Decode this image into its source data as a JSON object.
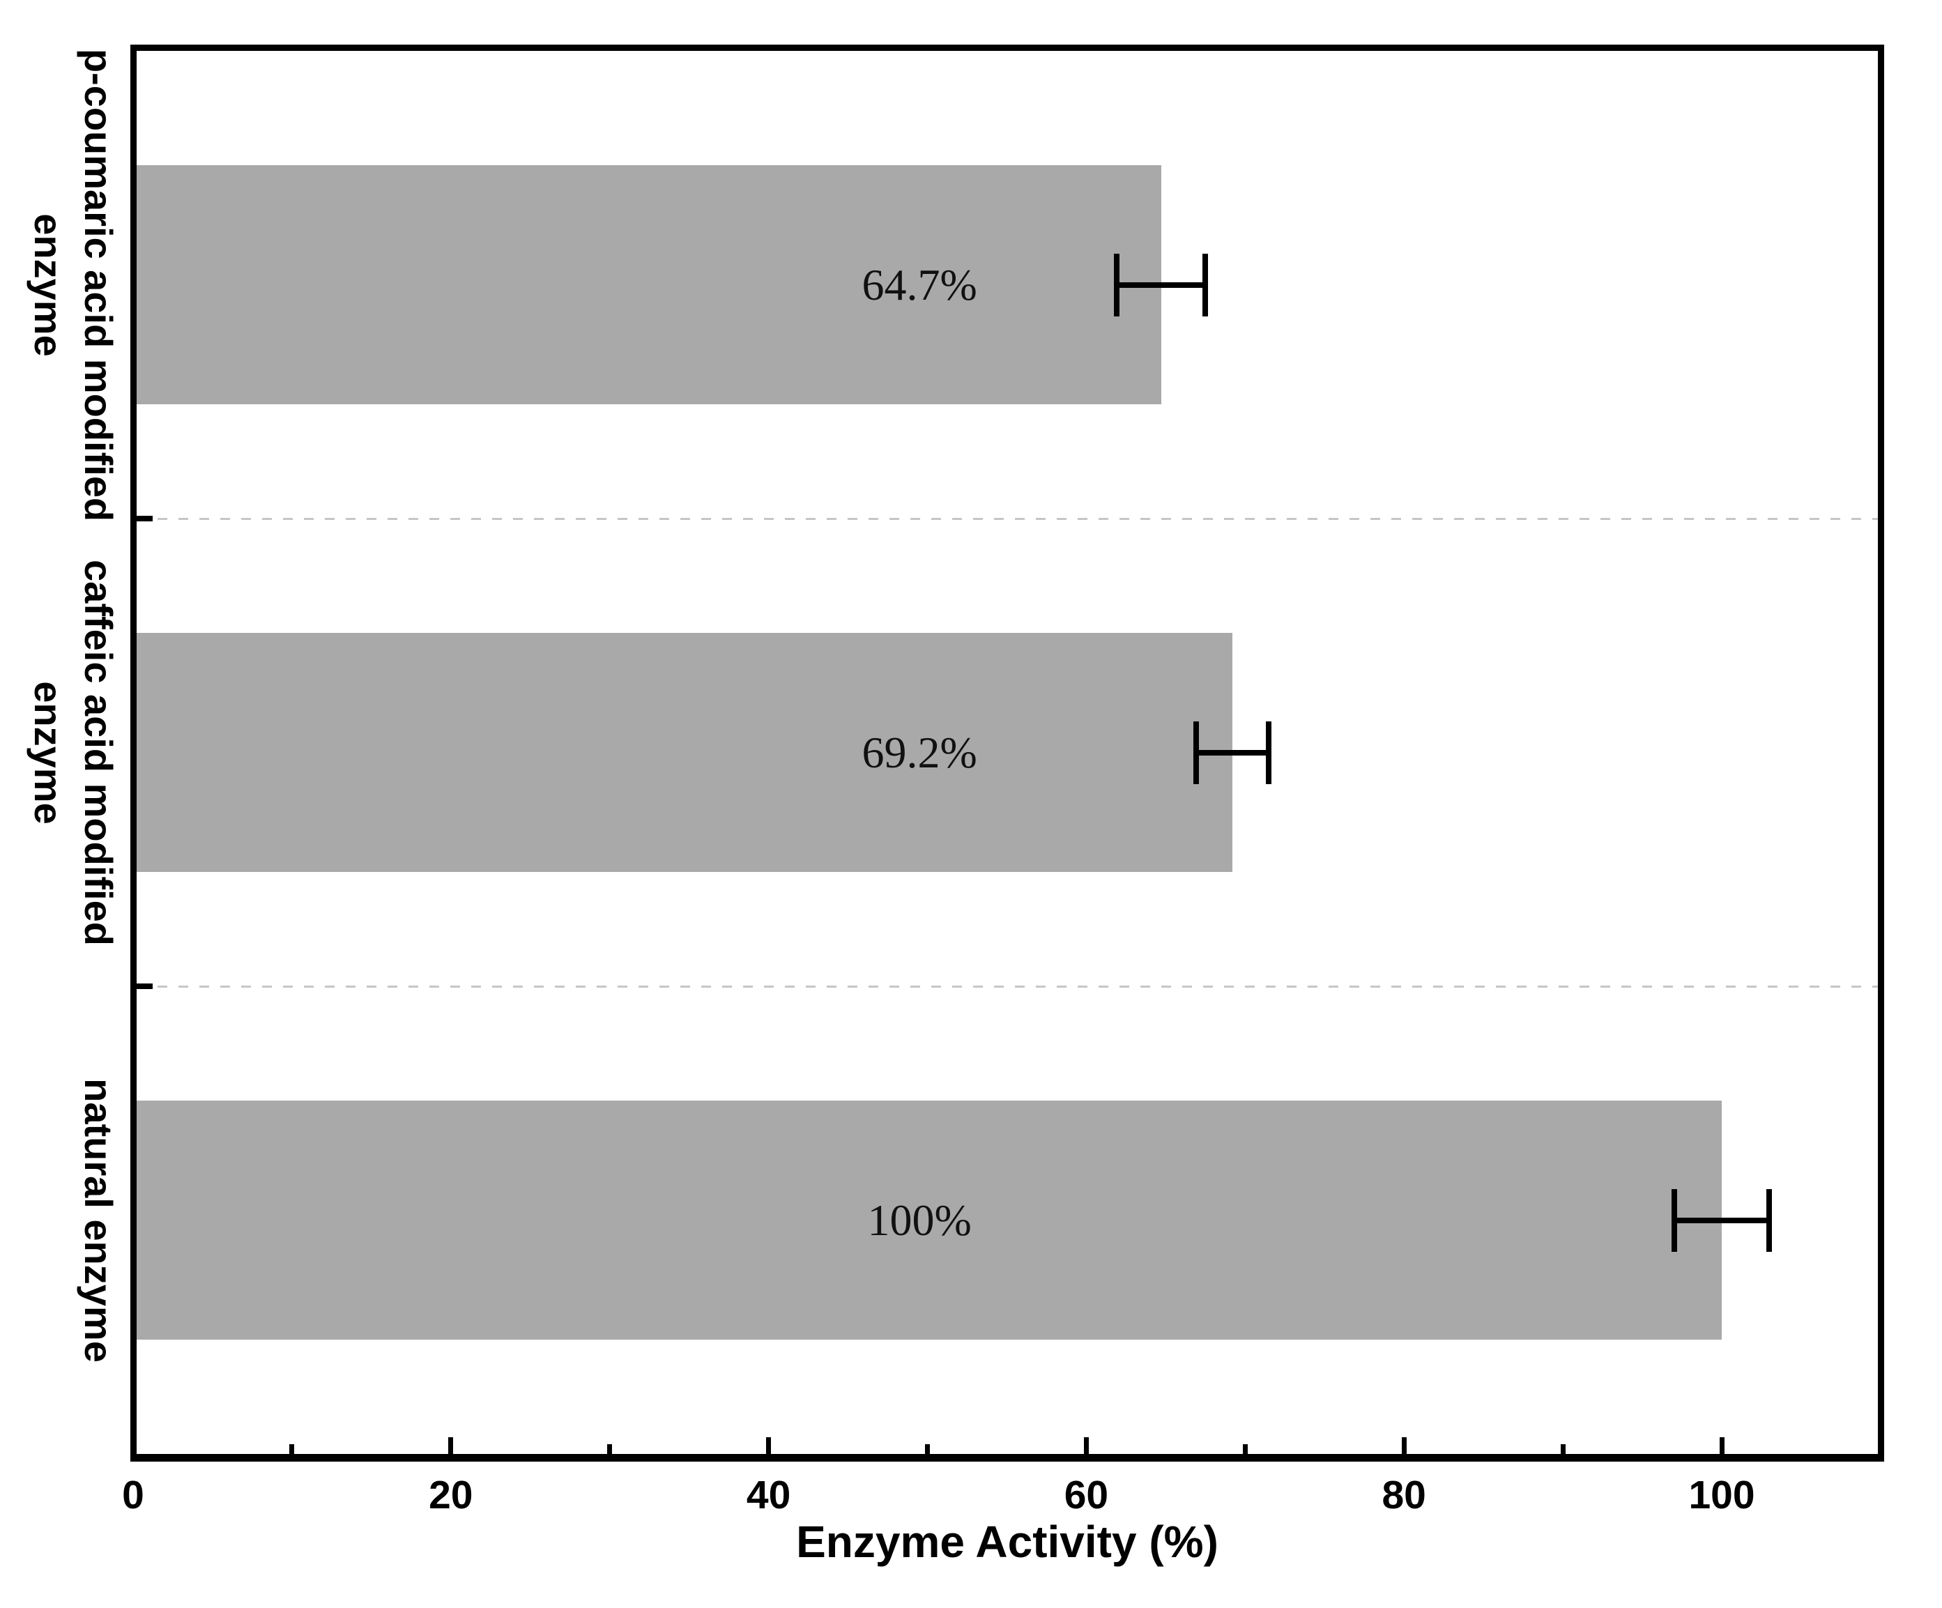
{
  "chart_data": {
    "type": "bar",
    "orientation": "horizontal",
    "title": "",
    "xlabel": "Enzyme Activity (%)",
    "ylabel": "",
    "xlim": [
      0,
      110
    ],
    "x_major_ticks": [
      0,
      20,
      40,
      60,
      80,
      100
    ],
    "x_minor_ticks": [
      10,
      30,
      50,
      70,
      90
    ],
    "grid": "off",
    "legend": "none",
    "bar_color": "#a9a9a9",
    "separator_color": "#c6c6c6",
    "axis_color": "#000000",
    "value_label_x": 49.5,
    "categories": [
      {
        "label_lines": [
          "p-coumaric acid modified",
          "enzyme"
        ],
        "value": 64.7,
        "error": 2.8,
        "value_label": "64.7%"
      },
      {
        "label_lines": [
          "caffeic acid modified",
          "enzyme"
        ],
        "value": 69.2,
        "error": 2.3,
        "value_label": "69.2%"
      },
      {
        "label_lines": [
          "natural enzyme"
        ],
        "value": 100,
        "error": 3.0,
        "value_label": "100%"
      }
    ]
  }
}
